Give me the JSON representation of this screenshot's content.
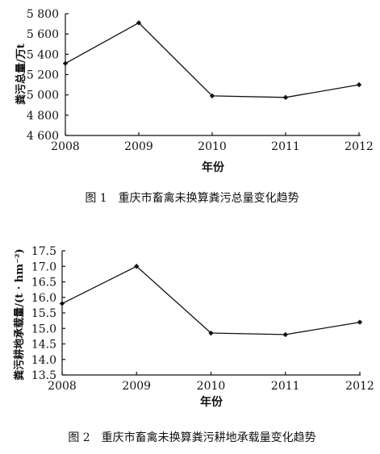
{
  "chart_data": [
    {
      "type": "line",
      "x": [
        "2008",
        "2009",
        "2010",
        "2011",
        "2012"
      ],
      "values": [
        5310,
        5710,
        4990,
        4975,
        5100
      ],
      "yticks": [
        "5 800",
        "5 600",
        "5 400",
        "5 200",
        "5 000",
        "4 800",
        "4 600"
      ],
      "ylim": [
        4600,
        5800
      ],
      "xlabel": "年份",
      "ylabel": "粪污总量/万t",
      "caption": "图 1　重庆市畜禽未换算粪污总量变化趋势",
      "grid": false
    },
    {
      "type": "line",
      "x": [
        "2008",
        "2009",
        "2010",
        "2011",
        "2012"
      ],
      "values": [
        15.8,
        17.0,
        14.85,
        14.8,
        15.2
      ],
      "yticks": [
        "17.5",
        "17.0",
        "16.5",
        "16.0",
        "15.5",
        "15.0",
        "14.5",
        "14.0",
        "13.5"
      ],
      "ylim": [
        13.5,
        17.5
      ],
      "xlabel": "年份",
      "ylabel": "粪污耕地承载量/(t · hm⁻²)",
      "caption": "图 2　重庆市畜禽未换算粪污耕地承载量变化趋势",
      "grid": false
    }
  ]
}
